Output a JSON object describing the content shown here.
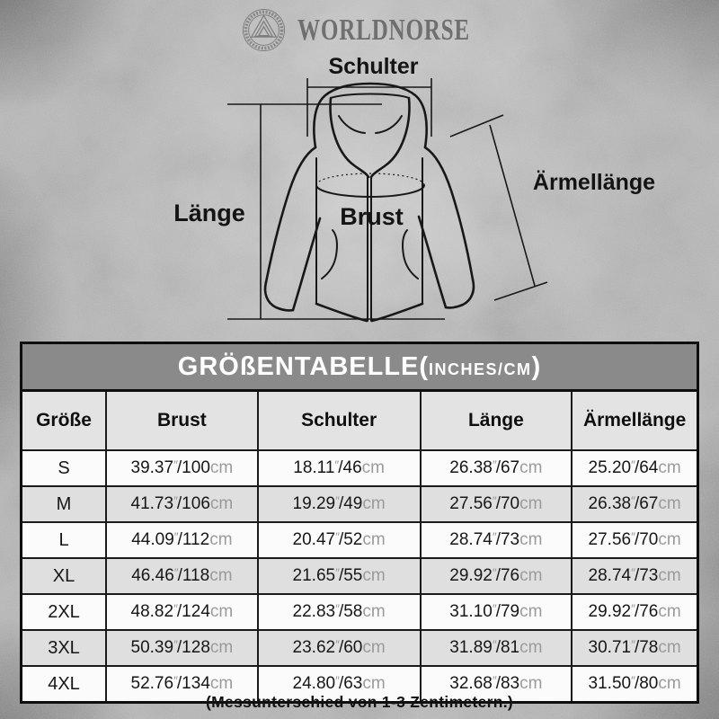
{
  "brand": {
    "name": "WORLDNORSE"
  },
  "diagram": {
    "labels": {
      "schulter": "Schulter",
      "laenge": "Länge",
      "brust": "Brust",
      "aermellaenge": "Ärmellänge"
    }
  },
  "size_table": {
    "title": {
      "main": "GRÖßENTABELLE(",
      "unit": "INCHES/CM",
      "close": ")"
    },
    "columns": [
      "Größe",
      "Brust",
      "Schulter",
      "Länge",
      "Ärmellänge"
    ],
    "inch_mark": "″",
    "cm_label": "cm",
    "rows": [
      {
        "size": "S",
        "measurements": [
          {
            "inches": "39.37",
            "cm": "100"
          },
          {
            "inches": "18.11",
            "cm": "46"
          },
          {
            "inches": "26.38",
            "cm": "67"
          },
          {
            "inches": "25.20",
            "cm": "64"
          }
        ]
      },
      {
        "size": "M",
        "measurements": [
          {
            "inches": "41.73",
            "cm": "106"
          },
          {
            "inches": "19.29",
            "cm": "49"
          },
          {
            "inches": "27.56",
            "cm": "70"
          },
          {
            "inches": "26.38",
            "cm": "67"
          }
        ]
      },
      {
        "size": "L",
        "measurements": [
          {
            "inches": "44.09",
            "cm": "112"
          },
          {
            "inches": "20.47",
            "cm": "52"
          },
          {
            "inches": "28.74",
            "cm": "73"
          },
          {
            "inches": "27.56",
            "cm": "70"
          }
        ]
      },
      {
        "size": "XL",
        "measurements": [
          {
            "inches": "46.46",
            "cm": "118"
          },
          {
            "inches": "21.65",
            "cm": "55"
          },
          {
            "inches": "29.92",
            "cm": "76"
          },
          {
            "inches": "28.74",
            "cm": "73"
          }
        ]
      },
      {
        "size": "2XL",
        "measurements": [
          {
            "inches": "48.82",
            "cm": "124"
          },
          {
            "inches": "22.83",
            "cm": "58"
          },
          {
            "inches": "31.10",
            "cm": "79"
          },
          {
            "inches": "29.92",
            "cm": "76"
          }
        ]
      },
      {
        "size": "3XL",
        "measurements": [
          {
            "inches": "50.39",
            "cm": "128"
          },
          {
            "inches": "23.62",
            "cm": "60"
          },
          {
            "inches": "31.89",
            "cm": "81"
          },
          {
            "inches": "30.71",
            "cm": "78"
          }
        ]
      },
      {
        "size": "4XL",
        "measurements": [
          {
            "inches": "52.76",
            "cm": "134"
          },
          {
            "inches": "24.80",
            "cm": "63"
          },
          {
            "inches": "32.68",
            "cm": "83"
          },
          {
            "inches": "31.50",
            "cm": "80"
          }
        ]
      }
    ]
  },
  "footnote": "(Messunterschied von 1-3 Zentimetern.)",
  "colors": {
    "table_title_bg": "#8a8a8a",
    "header_row_bg": "#e3e3e3",
    "alt_row_bg": "#dfdfdf",
    "row_bg": "#fbfbfb",
    "border": "#0e0e0e",
    "unit_text": "#9b9b9b",
    "logo_text": "#696969",
    "label_text": "#141414",
    "background": "#b9b9b9"
  },
  "chart_data": {
    "type": "table",
    "title": "GRÖßENTABELLE (INCHES/CM)",
    "columns": [
      "Größe",
      "Brust",
      "Schulter",
      "Länge",
      "Ärmellänge"
    ],
    "rows": [
      [
        "S",
        "39.37″/100cm",
        "18.11″/46cm",
        "26.38″/67cm",
        "25.20″/64cm"
      ],
      [
        "M",
        "41.73″/106cm",
        "19.29″/49cm",
        "27.56″/70cm",
        "26.38″/67cm"
      ],
      [
        "L",
        "44.09″/112cm",
        "20.47″/52cm",
        "28.74″/73cm",
        "27.56″/70cm"
      ],
      [
        "XL",
        "46.46″/118cm",
        "21.65″/55cm",
        "29.92″/76cm",
        "28.74″/73cm"
      ],
      [
        "2XL",
        "48.82″/124cm",
        "22.83″/58cm",
        "31.10″/79cm",
        "29.92″/76cm"
      ],
      [
        "3XL",
        "50.39″/128cm",
        "23.62″/60cm",
        "31.89″/81cm",
        "30.71″/78cm"
      ],
      [
        "4XL",
        "52.76″/134cm",
        "24.80″/63cm",
        "32.68″/83cm",
        "31.50″/80cm"
      ]
    ],
    "footnote": "(Messunterschied von 1-3 Zentimetern.)"
  }
}
